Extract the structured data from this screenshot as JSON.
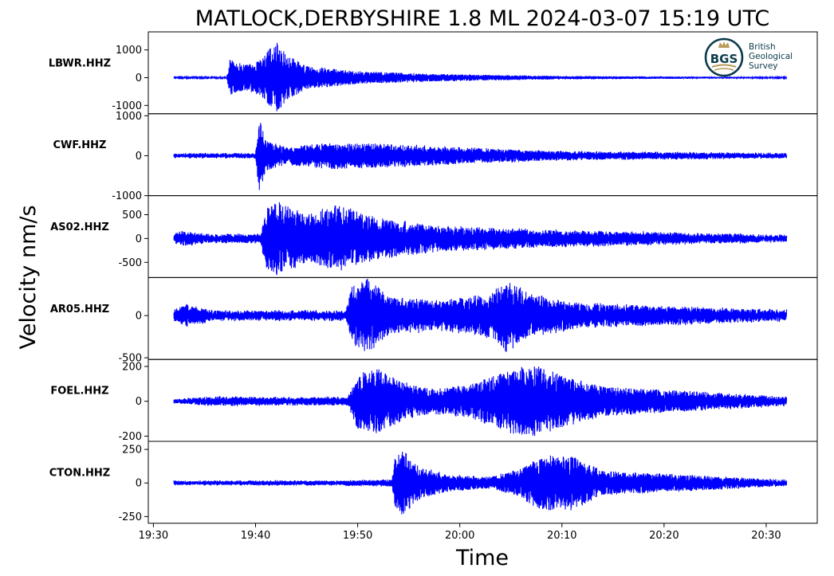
{
  "chart_data": {
    "type": "line",
    "title": "MATLOCK,DERBYSHIRE 1.8 ML   2024-03-07 15:19 UTC",
    "xlabel": "Time",
    "ylabel": "Velocity nm/s",
    "x_range": [
      "19:29:30",
      "20:35:00"
    ],
    "x_ticks": [
      "19:30",
      "19:40",
      "19:50",
      "20:00",
      "20:10",
      "20:20",
      "20:30"
    ],
    "line_color": "#0000ff",
    "logo": {
      "text_lines": [
        "British",
        "Geological",
        "Survey"
      ],
      "monogram": "BGS"
    },
    "series": [
      {
        "name": "LBWR.HHZ",
        "ylim": [
          -1300,
          1650
        ],
        "y_ticks": [
          {
            "v": 1000,
            "label": "1000"
          },
          {
            "v": 0,
            "label": "0"
          },
          {
            "v": -1000,
            "label": "-1000"
          }
        ],
        "noise": 20,
        "envelope": [
          [
            "19:32",
            20
          ],
          [
            "19:37:10",
            25
          ],
          [
            "19:37:30",
            650
          ],
          [
            "19:39",
            450
          ],
          [
            "19:40:30",
            650
          ],
          [
            "19:42",
            1300
          ],
          [
            "19:43",
            850
          ],
          [
            "19:45",
            420
          ],
          [
            "19:50",
            230
          ],
          [
            "19:58",
            130
          ],
          [
            "20:10",
            60
          ],
          [
            "20:32",
            22
          ]
        ]
      },
      {
        "name": "CWF.HHZ",
        "ylim": [
          -1000,
          1050
        ],
        "y_ticks": [
          {
            "v": 1000,
            "label": "1000"
          },
          {
            "v": 0,
            "label": "0"
          },
          {
            "v": -1000,
            "label": "-1000"
          }
        ],
        "noise": 55,
        "envelope": [
          [
            "19:32",
            55
          ],
          [
            "19:40",
            60
          ],
          [
            "19:40:20",
            950
          ],
          [
            "19:41",
            380
          ],
          [
            "19:43",
            220
          ],
          [
            "19:47",
            330
          ],
          [
            "19:52",
            300
          ],
          [
            "19:58",
            230
          ],
          [
            "20:10",
            110
          ],
          [
            "20:32",
            60
          ]
        ]
      },
      {
        "name": "AS02.HHZ",
        "ylim": [
          -820,
          900
        ],
        "y_ticks": [
          {
            "v": 500,
            "label": "500"
          },
          {
            "v": 0,
            "label": "0"
          },
          {
            "v": -500,
            "label": "-500"
          }
        ],
        "noise": 75,
        "envelope": [
          [
            "19:32",
            85
          ],
          [
            "19:33",
            170
          ],
          [
            "19:35",
            90
          ],
          [
            "19:40:30",
            90
          ],
          [
            "19:41",
            620
          ],
          [
            "19:42",
            800
          ],
          [
            "19:45",
            500
          ],
          [
            "19:48",
            700
          ],
          [
            "19:52",
            420
          ],
          [
            "19:58",
            260
          ],
          [
            "20:10",
            170
          ],
          [
            "20:32",
            65
          ]
        ]
      },
      {
        "name": "AR05.HHZ",
        "ylim": [
          -520,
          450
        ],
        "y_ticks": [
          {
            "v": 0,
            "label": "0"
          },
          {
            "v": -500,
            "label": "-500"
          }
        ],
        "noise": 50,
        "envelope": [
          [
            "19:32",
            55
          ],
          [
            "19:33",
            130
          ],
          [
            "19:36",
            55
          ],
          [
            "19:48:50",
            55
          ],
          [
            "19:49:30",
            380
          ],
          [
            "19:51",
            430
          ],
          [
            "19:53",
            230
          ],
          [
            "19:58",
            170
          ],
          [
            "20:03",
            260
          ],
          [
            "20:04:30",
            430
          ],
          [
            "20:07",
            250
          ],
          [
            "20:12",
            140
          ],
          [
            "20:32",
            60
          ]
        ]
      },
      {
        "name": "FOEL.HHZ",
        "ylim": [
          -230,
          240
        ],
        "y_ticks": [
          {
            "v": 200,
            "label": "200"
          },
          {
            "v": 0,
            "label": "0"
          },
          {
            "v": -200,
            "label": "-200"
          }
        ],
        "noise": 12,
        "envelope": [
          [
            "19:32",
            10
          ],
          [
            "19:36",
            28
          ],
          [
            "19:43",
            22
          ],
          [
            "19:49",
            25
          ],
          [
            "19:50",
            160
          ],
          [
            "19:52",
            185
          ],
          [
            "19:54",
            120
          ],
          [
            "19:57",
            70
          ],
          [
            "20:01",
            95
          ],
          [
            "20:04",
            165
          ],
          [
            "20:06",
            200
          ],
          [
            "20:08",
            200
          ],
          [
            "20:10",
            150
          ],
          [
            "20:14",
            85
          ],
          [
            "20:32",
            25
          ]
        ]
      },
      {
        "name": "CTON.HHZ",
        "ylim": [
          -300,
          310
        ],
        "y_ticks": [
          {
            "v": 250,
            "label": "250"
          },
          {
            "v": 0,
            "label": "0"
          },
          {
            "v": -250,
            "label": "-250"
          }
        ],
        "noise": 15,
        "envelope": [
          [
            "19:32",
            15
          ],
          [
            "19:48",
            18
          ],
          [
            "19:53:20",
            25
          ],
          [
            "19:53:40",
            190
          ],
          [
            "19:54:30",
            250
          ],
          [
            "19:56",
            120
          ],
          [
            "19:59",
            60
          ],
          [
            "20:03",
            45
          ],
          [
            "20:06",
            110
          ],
          [
            "20:08",
            210
          ],
          [
            "20:11",
            200
          ],
          [
            "20:14",
            90
          ],
          [
            "20:32",
            22
          ]
        ]
      }
    ]
  }
}
